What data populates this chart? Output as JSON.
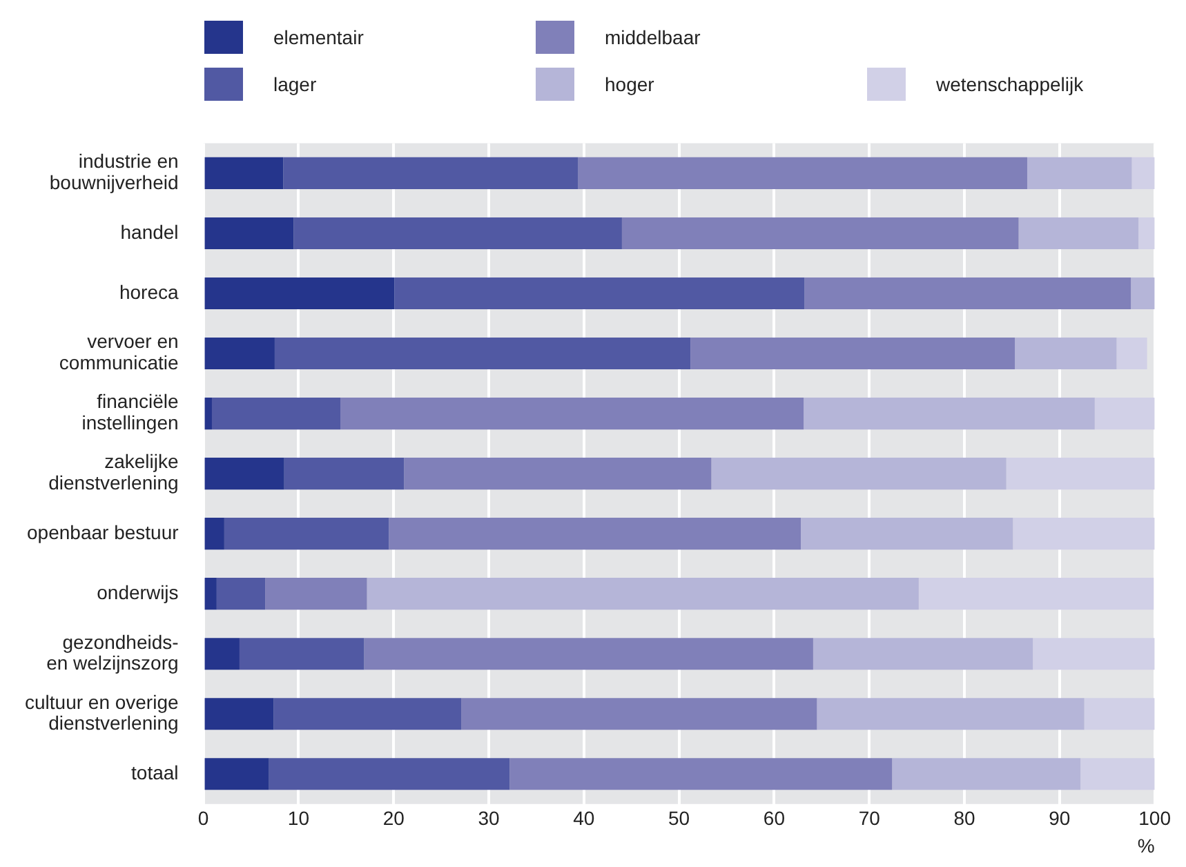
{
  "chart_data": {
    "type": "bar",
    "orientation": "horizontal",
    "stacked": true,
    "xlabel": "%",
    "categories": [
      "industrie en\nbouwnijverheid",
      "handel",
      "horeca",
      "vervoer en\ncommunicatie",
      "financiële\ninstellingen",
      "zakelijke\ndienstverlening",
      "openbaar bestuur",
      "onderwijs",
      "gezondheids-\nen welzijnszorg",
      "cultuur en overige\ndienstverlening",
      "totaal"
    ],
    "series": [
      {
        "name": "elementair",
        "color": "#25358c",
        "values": [
          8.4,
          9.5,
          20.1,
          7.5,
          0.9,
          8.5,
          2.2,
          1.4,
          3.8,
          7.4,
          6.9
        ]
      },
      {
        "name": "lager",
        "color": "#5159a3",
        "values": [
          31.0,
          34.5,
          43.1,
          43.7,
          13.5,
          12.6,
          17.3,
          5.1,
          13.1,
          19.7,
          25.3
        ]
      },
      {
        "name": "middelbaar",
        "color": "#8080b9",
        "values": [
          47.2,
          41.7,
          34.3,
          34.1,
          48.7,
          32.3,
          43.3,
          10.7,
          47.2,
          37.4,
          40.2
        ]
      },
      {
        "name": "hoger",
        "color": "#b5b5d8",
        "values": [
          11.0,
          12.6,
          2.5,
          10.7,
          30.6,
          31.0,
          22.3,
          58.0,
          23.1,
          28.1,
          19.8
        ]
      },
      {
        "name": "wetenschappelijk",
        "color": "#d1d0e7",
        "values": [
          2.4,
          1.7,
          0,
          3.2,
          6.3,
          15.6,
          14.9,
          24.7,
          12.8,
          7.4,
          7.8
        ]
      }
    ],
    "xlim": [
      0,
      100
    ],
    "xticks": [
      0,
      10,
      20,
      30,
      40,
      50,
      60,
      70,
      80,
      90,
      100
    ],
    "grid": "x",
    "legend": "top"
  }
}
